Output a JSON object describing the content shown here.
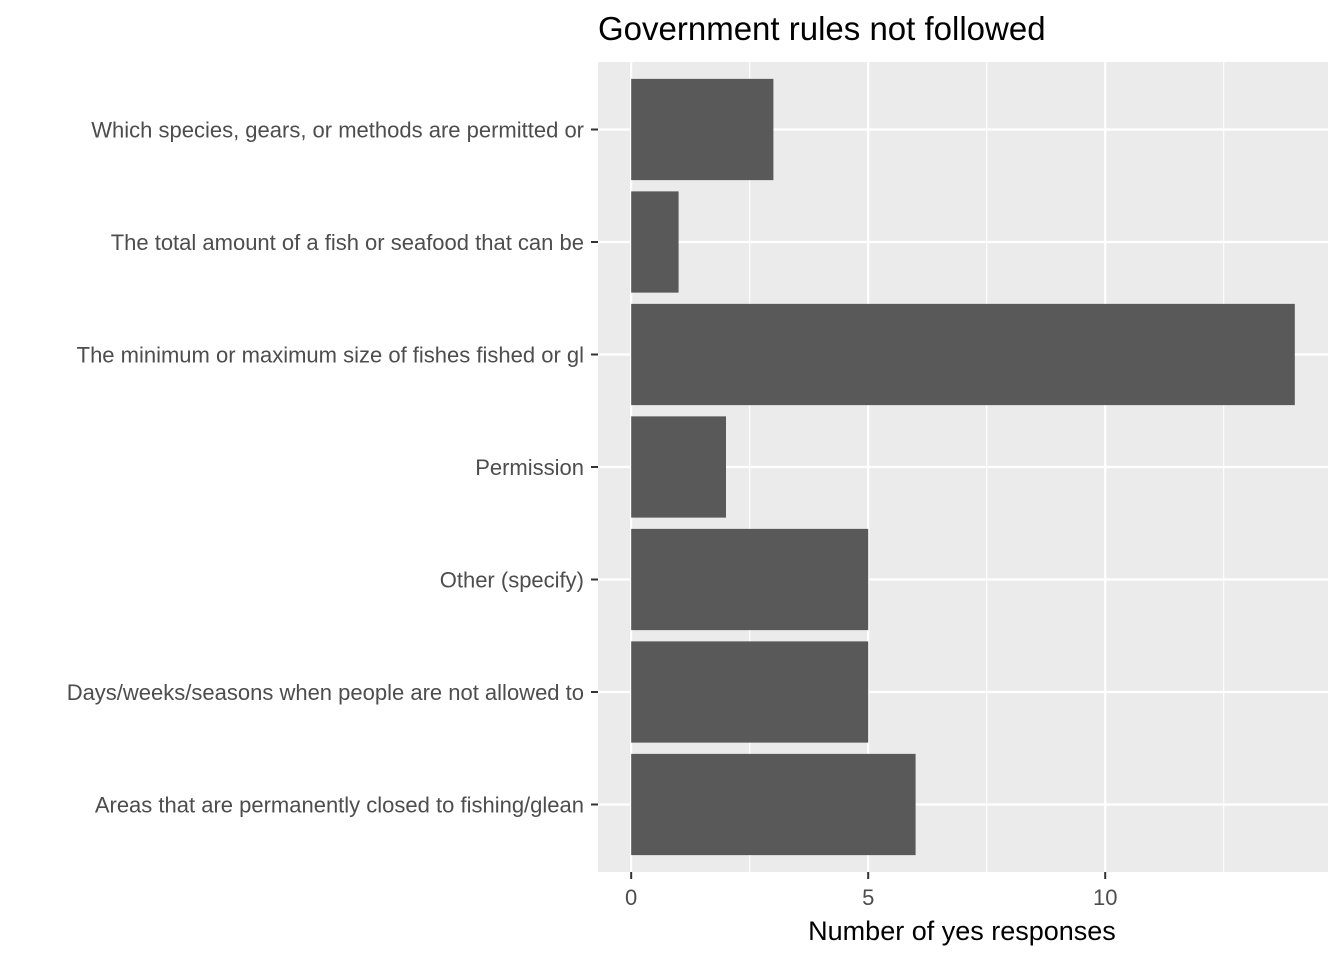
{
  "chart_data": {
    "type": "bar",
    "orientation": "horizontal",
    "title": "Government rules not followed",
    "xlabel": "Number of yes responses",
    "ylabel": "",
    "categories": [
      "Which species, gears, or methods are permitted or ",
      "The total amount of a fish or seafood that can be ",
      "The minimum or maximum size of fishes fished or gl",
      "Permission",
      "Other (specify)",
      "Days/weeks/seasons when people are not allowed to ",
      "Areas that are permanently closed to fishing/glean"
    ],
    "values": [
      3,
      1,
      14,
      2,
      5,
      5,
      6
    ],
    "xlim": [
      -0.7,
      14.7
    ],
    "xticks": [
      0,
      5,
      10
    ],
    "xtick_labels": [
      "0",
      "5",
      "10"
    ],
    "grid": true,
    "legend": "none",
    "colors": {
      "bar": "#595959",
      "panel": "#ebebeb",
      "grid_major": "#ffffff",
      "axis_text": "#4d4d4d",
      "title_text": "#000000",
      "tick": "#333333"
    }
  }
}
